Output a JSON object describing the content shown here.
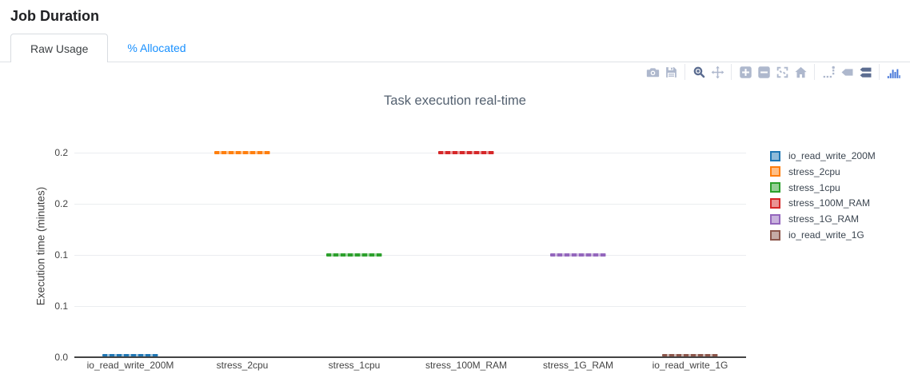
{
  "page": {
    "title": "Job Duration"
  },
  "tabs": [
    {
      "label": "Raw Usage",
      "active": true
    },
    {
      "label": "% Allocated",
      "active": false
    }
  ],
  "toolbar": {
    "groups": [
      {
        "icons": [
          {
            "name": "camera",
            "active": false
          },
          {
            "name": "save",
            "active": false
          }
        ]
      },
      {
        "icons": [
          {
            "name": "zoom",
            "active": true
          },
          {
            "name": "pan",
            "active": false
          }
        ]
      },
      {
        "icons": [
          {
            "name": "zoom-in",
            "active": false
          },
          {
            "name": "zoom-out",
            "active": false
          },
          {
            "name": "autoscale",
            "active": false
          },
          {
            "name": "reset-axes",
            "active": false
          }
        ]
      },
      {
        "icons": [
          {
            "name": "spikelines",
            "active": false
          },
          {
            "name": "closest-hover",
            "active": false
          },
          {
            "name": "compare-hover",
            "active": true
          }
        ]
      },
      {
        "icons": [
          {
            "name": "plotly-logo",
            "active": false,
            "logo": true
          }
        ]
      }
    ]
  },
  "colors": {
    "tab_link_blue": "#1890ff",
    "axis_text": "#444444",
    "grid": "#ebedf0",
    "zeroline": "#444444",
    "title_text": "#546170",
    "legend_text": "#3b4550",
    "modebar_inactive": "#aeb8cd",
    "modebar_active": "#5c6d91",
    "modebar_logo": "#4677d9"
  },
  "chart_data": {
    "type": "box",
    "title": "Task execution real-time",
    "xlabel": "",
    "ylabel": "Execution time (minutes)",
    "categories": [
      "io_read_write_200M",
      "stress_2cpu",
      "stress_1cpu",
      "stress_100M_RAM",
      "stress_1G_RAM",
      "io_read_write_1G"
    ],
    "series": [
      {
        "name": "io_read_write_200M",
        "color": "#1f77b4",
        "value_minutes": 0.002
      },
      {
        "name": "stress_2cpu",
        "color": "#ff7f0e",
        "value_minutes": 0.2
      },
      {
        "name": "stress_1cpu",
        "color": "#2ca02c",
        "value_minutes": 0.1
      },
      {
        "name": "stress_100M_RAM",
        "color": "#d62728",
        "value_minutes": 0.2
      },
      {
        "name": "stress_1G_RAM",
        "color": "#9467bd",
        "value_minutes": 0.1
      },
      {
        "name": "io_read_write_1G",
        "color": "#8c564b",
        "value_minutes": 0.002
      }
    ],
    "yticks": [
      {
        "v": 0.0,
        "label": "0.0"
      },
      {
        "v": 0.05,
        "label": "0.1"
      },
      {
        "v": 0.1,
        "label": "0.1"
      },
      {
        "v": 0.15,
        "label": "0.2"
      },
      {
        "v": 0.2,
        "label": "0.2"
      }
    ],
    "ylim": [
      0,
      0.224
    ],
    "grid": true,
    "legend_position": "right"
  }
}
